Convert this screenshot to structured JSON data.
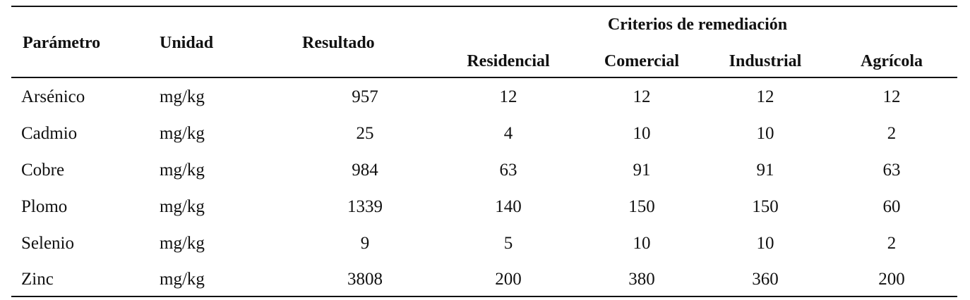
{
  "table": {
    "headers": {
      "parametro": "Parámetro",
      "unidad": "Unidad",
      "resultado": "Resultado",
      "group": "Criterios de remediación",
      "residencial": "Residencial",
      "comercial": "Comercial",
      "industrial": "Industrial",
      "agricola": "Agrícola"
    },
    "rows": [
      {
        "parametro": "Arsénico",
        "unidad": "mg/kg",
        "resultado": "957",
        "residencial": "12",
        "comercial": "12",
        "industrial": "12",
        "agricola": "12"
      },
      {
        "parametro": "Cadmio",
        "unidad": "mg/kg",
        "resultado": "25",
        "residencial": "4",
        "comercial": "10",
        "industrial": "10",
        "agricola": "2"
      },
      {
        "parametro": "Cobre",
        "unidad": "mg/kg",
        "resultado": "984",
        "residencial": "63",
        "comercial": "91",
        "industrial": "91",
        "agricola": "63"
      },
      {
        "parametro": "Plomo",
        "unidad": "mg/kg",
        "resultado": "1339",
        "residencial": "140",
        "comercial": "150",
        "industrial": "150",
        "agricola": "60"
      },
      {
        "parametro": "Selenio",
        "unidad": "mg/kg",
        "resultado": "9",
        "residencial": "5",
        "comercial": "10",
        "industrial": "10",
        "agricola": "2"
      },
      {
        "parametro": "Zinc",
        "unidad": "mg/kg",
        "resultado": "3808",
        "residencial": "200",
        "comercial": "380",
        "industrial": "360",
        "agricola": "200"
      }
    ]
  }
}
